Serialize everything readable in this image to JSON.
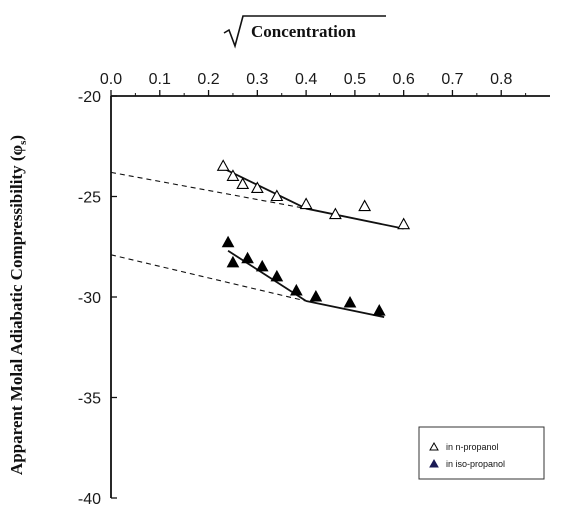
{
  "chart_data": {
    "type": "scatter",
    "xlabel": "Concentration",
    "xlabel_has_sqrt": true,
    "ylabel": "Apparent Molal Adiabatic Compressibility (φ",
    "ylabel_subscript": "s",
    "ylabel_close": ")",
    "x_axis_position": "top",
    "xlim": [
      0.0,
      0.9
    ],
    "ylim": [
      -40,
      -20
    ],
    "xticks": [
      "0.0",
      "0.1",
      "0.2",
      "0.3",
      "0.4",
      "0.5",
      "0.6",
      "0.7",
      "0.8"
    ],
    "yticks": [
      "-20",
      "-25",
      "-30",
      "-35",
      "-40"
    ],
    "grid": false,
    "legend_position": "bottom-right",
    "series": [
      {
        "name": "in n-propanol",
        "marker": "open-triangle",
        "color": "#000000",
        "points": [
          {
            "x": 0.23,
            "y": -23.5
          },
          {
            "x": 0.25,
            "y": -24.0
          },
          {
            "x": 0.27,
            "y": -24.4
          },
          {
            "x": 0.3,
            "y": -24.6
          },
          {
            "x": 0.34,
            "y": -25.0
          },
          {
            "x": 0.4,
            "y": -25.4
          },
          {
            "x": 0.46,
            "y": -25.9
          },
          {
            "x": 0.52,
            "y": -25.5
          },
          {
            "x": 0.6,
            "y": -26.4
          }
        ],
        "fit_lines": [
          {
            "x": [
              0.23,
              0.4
            ],
            "y": [
              -23.6,
              -25.6
            ],
            "style": "solid"
          },
          {
            "x": [
              0.4,
              0.6
            ],
            "y": [
              -25.6,
              -26.6
            ],
            "style": "solid"
          },
          {
            "x": [
              0.0,
              0.4
            ],
            "y": [
              -23.8,
              -25.6
            ],
            "style": "dashed"
          }
        ]
      },
      {
        "name": "in iso-propanol",
        "marker": "filled-triangle",
        "color": "#000000",
        "points": [
          {
            "x": 0.24,
            "y": -27.3
          },
          {
            "x": 0.25,
            "y": -28.3
          },
          {
            "x": 0.28,
            "y": -28.1
          },
          {
            "x": 0.31,
            "y": -28.5
          },
          {
            "x": 0.34,
            "y": -29.0
          },
          {
            "x": 0.38,
            "y": -29.7
          },
          {
            "x": 0.42,
            "y": -30.0
          },
          {
            "x": 0.49,
            "y": -30.3
          },
          {
            "x": 0.55,
            "y": -30.7
          }
        ],
        "fit_lines": [
          {
            "x": [
              0.24,
              0.4
            ],
            "y": [
              -27.7,
              -30.2
            ],
            "style": "solid"
          },
          {
            "x": [
              0.4,
              0.56
            ],
            "y": [
              -30.2,
              -31.0
            ],
            "style": "solid"
          },
          {
            "x": [
              0.0,
              0.4
            ],
            "y": [
              -27.9,
              -30.2
            ],
            "style": "dashed"
          }
        ]
      }
    ],
    "legend_marker_colors": {
      "open": "#000000",
      "filled": "#1a1a55"
    }
  }
}
